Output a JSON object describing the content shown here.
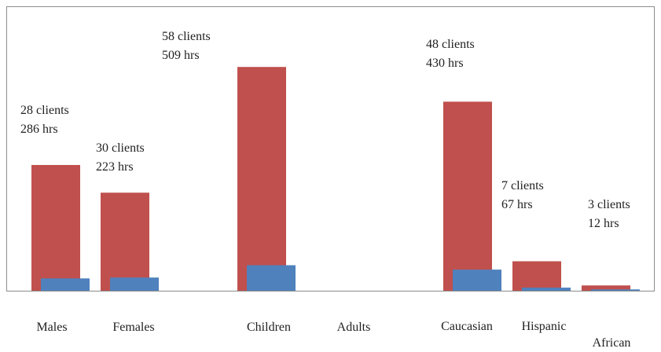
{
  "chart_data": {
    "type": "bar",
    "categories": [
      "Males",
      "Females",
      "Children",
      "Adults",
      "Caucasian",
      "Hispanic",
      "African"
    ],
    "series": [
      {
        "color": "#c0504d",
        "values": [
          286,
          223,
          509,
          0,
          430,
          67,
          12
        ]
      },
      {
        "color": "#4f81bd",
        "values": [
          28,
          30,
          58,
          0,
          48,
          7,
          3
        ]
      }
    ],
    "annotations": [
      {
        "category": "Males",
        "line1": "28 clients",
        "line2": "286 hrs"
      },
      {
        "category": "Females",
        "line1": "30 clients",
        "line2": "223 hrs"
      },
      {
        "category": "Children",
        "line1": "58 clients",
        "line2": "509 hrs"
      },
      {
        "category": "Caucasian",
        "line1": "48 clients",
        "line2": "430 hrs"
      },
      {
        "category": "Hispanic",
        "line1": "7 clients",
        "line2": "67 hrs"
      },
      {
        "category": "African",
        "line1": "3 clients",
        "line2": "12 hrs"
      }
    ],
    "title": "",
    "xlabel": "",
    "ylabel": "",
    "ylim": [
      0,
      510
    ],
    "grid": false,
    "legend": "none"
  }
}
